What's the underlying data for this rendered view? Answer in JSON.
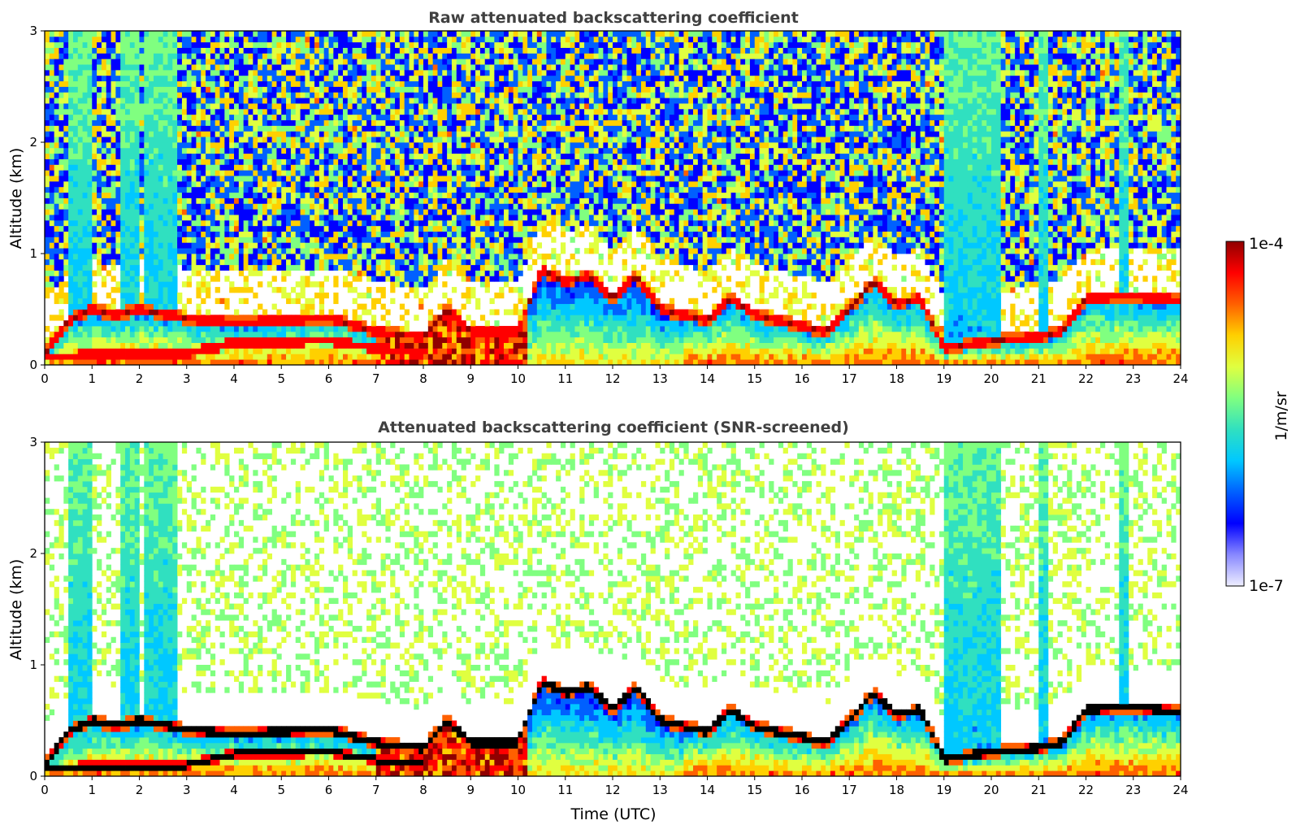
{
  "chart_data": [
    {
      "type": "heatmap",
      "title": "Raw attenuated backscattering coefficient",
      "xlabel": "",
      "ylabel": "Altitude (km)",
      "xlim": [
        0,
        24
      ],
      "ylim": [
        0,
        3
      ],
      "xticks": [
        "0",
        "1",
        "2",
        "3",
        "4",
        "5",
        "6",
        "7",
        "8",
        "9",
        "10",
        "11",
        "12",
        "13",
        "14",
        "15",
        "16",
        "17",
        "18",
        "19",
        "20",
        "21",
        "22",
        "23",
        "24"
      ],
      "yticks": [
        "0",
        "1",
        "2",
        "3"
      ],
      "screened": false,
      "layer_height_km": [
        [
          0,
          0.1
        ],
        [
          0.5,
          0.4
        ],
        [
          1,
          0.5
        ],
        [
          1.5,
          0.45
        ],
        [
          2,
          0.5
        ],
        [
          3,
          0.42
        ],
        [
          4,
          0.38
        ],
        [
          5,
          0.4
        ],
        [
          6,
          0.42
        ],
        [
          7,
          0.3
        ],
        [
          8,
          0.25
        ],
        [
          8.5,
          0.5
        ],
        [
          9,
          0.3
        ],
        [
          10,
          0.3
        ],
        [
          10.5,
          0.85
        ],
        [
          11,
          0.75
        ],
        [
          11.5,
          0.8
        ],
        [
          12,
          0.6
        ],
        [
          12.5,
          0.8
        ],
        [
          13,
          0.5
        ],
        [
          14,
          0.4
        ],
        [
          14.5,
          0.6
        ],
        [
          15,
          0.45
        ],
        [
          16,
          0.35
        ],
        [
          16.5,
          0.3
        ],
        [
          17,
          0.5
        ],
        [
          17.5,
          0.75
        ],
        [
          18,
          0.55
        ],
        [
          18.5,
          0.6
        ],
        [
          19,
          0.15
        ],
        [
          20,
          0.22
        ],
        [
          21,
          0.25
        ],
        [
          21.5,
          0.3
        ],
        [
          22,
          0.6
        ],
        [
          23,
          0.62
        ],
        [
          24,
          0.58
        ]
      ],
      "lower_layer_km": [
        [
          0,
          0.08
        ],
        [
          3,
          0.1
        ],
        [
          4,
          0.2
        ],
        [
          6,
          0.22
        ],
        [
          7,
          0.15
        ],
        [
          8,
          0.1
        ]
      ],
      "cloud_columns_utc": [
        [
          0.5,
          1.0
        ],
        [
          1.6,
          2.0
        ],
        [
          2.1,
          2.8
        ],
        [
          19.0,
          20.2
        ],
        [
          21.0,
          21.2
        ],
        [
          22.7,
          22.9
        ]
      ]
    },
    {
      "type": "heatmap",
      "title": "Attenuated backscattering coefficient (SNR-screened)",
      "xlabel": "Time (UTC)",
      "ylabel": "Altitude (km)",
      "xlim": [
        0,
        24
      ],
      "ylim": [
        0,
        3
      ],
      "xticks": [
        "0",
        "1",
        "2",
        "3",
        "4",
        "5",
        "6",
        "7",
        "8",
        "9",
        "10",
        "11",
        "12",
        "13",
        "14",
        "15",
        "16",
        "17",
        "18",
        "19",
        "20",
        "21",
        "22",
        "23",
        "24"
      ],
      "yticks": [
        "0",
        "1",
        "2",
        "3"
      ],
      "screened": true
    }
  ],
  "colorbar": {
    "label": "1/m/sr",
    "max_label": "1e-4",
    "min_label": "1e-7",
    "scale": "log",
    "range": [
      1e-07,
      0.0001
    ],
    "colormap": [
      "#eeeeff",
      "#8888ff",
      "#0000ff",
      "#0060ff",
      "#00c8ff",
      "#30e0c0",
      "#80ff80",
      "#e0ff40",
      "#ffd000",
      "#ff6000",
      "#ff0000",
      "#900000"
    ]
  }
}
